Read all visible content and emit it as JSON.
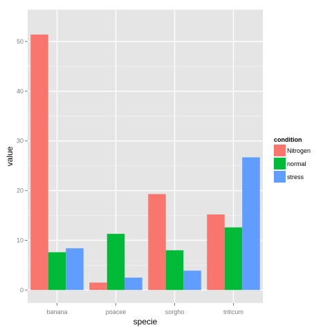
{
  "chart_data": {
    "type": "bar",
    "xlabel": "specie",
    "ylabel": "value",
    "categories": [
      "banana",
      "poacee",
      "sorgho",
      "triticum"
    ],
    "ylim": [
      -2.6,
      56.4
    ],
    "yticks": [
      0,
      10,
      20,
      30,
      40,
      50
    ],
    "grid": true,
    "legend_position": "right",
    "legend_title": "condition",
    "series": [
      {
        "name": "Nitrogen",
        "color": "#F8766D",
        "values": [
          51.4,
          1.5,
          19.3,
          15.2
        ]
      },
      {
        "name": "normal",
        "color": "#00BA38",
        "values": [
          7.6,
          11.3,
          8.0,
          12.6
        ]
      },
      {
        "name": "stress",
        "color": "#619CFF",
        "values": [
          8.4,
          2.5,
          3.9,
          26.7
        ]
      }
    ],
    "panel_background": "#E5E5E5",
    "grid_color": "#FFFFFF"
  }
}
